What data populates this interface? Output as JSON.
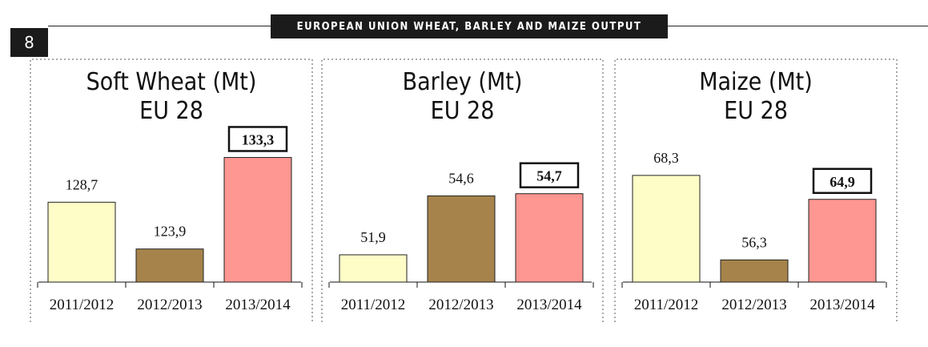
{
  "header": {
    "title": "EUROPEAN UNION WHEAT, BARLEY AND MAIZE OUTPUT",
    "page_number": "8"
  },
  "colors": {
    "period_1": "#fefcc7",
    "period_2": "#a6834b",
    "period_3": "#fe9691",
    "border": "#222222"
  },
  "chart_data": [
    {
      "type": "bar",
      "title": "Soft Wheat (Mt)",
      "subtitle": "EU 28",
      "categories": [
        "2011/2012",
        "2012/2013",
        "2013/2014"
      ],
      "values": [
        128.7,
        123.9,
        133.3
      ],
      "value_labels": [
        "128,7",
        "123,9",
        "133,3"
      ],
      "highlighted": [
        false,
        false,
        true
      ],
      "ylim": [
        120.5,
        136.3
      ],
      "grid": false
    },
    {
      "type": "bar",
      "title": "Barley (Mt)",
      "subtitle": "EU 28",
      "categories": [
        "2011/2012",
        "2012/2013",
        "2013/2014"
      ],
      "values": [
        51.9,
        54.6,
        54.7
      ],
      "value_labels": [
        "51,9",
        "54,6",
        "54,7"
      ],
      "highlighted": [
        false,
        false,
        true
      ],
      "ylim": [
        50.65,
        57.7
      ],
      "grid": false
    },
    {
      "type": "bar",
      "title": "Maize (Mt)",
      "subtitle": "EU 28",
      "categories": [
        "2011/2012",
        "2012/2013",
        "2013/2014"
      ],
      "values": [
        68.3,
        56.3,
        64.9
      ],
      "value_labels": [
        "68,3",
        "56,3",
        "64,9"
      ],
      "highlighted": [
        false,
        false,
        true
      ],
      "ylim": [
        53.15,
        75.0
      ],
      "grid": false
    }
  ]
}
